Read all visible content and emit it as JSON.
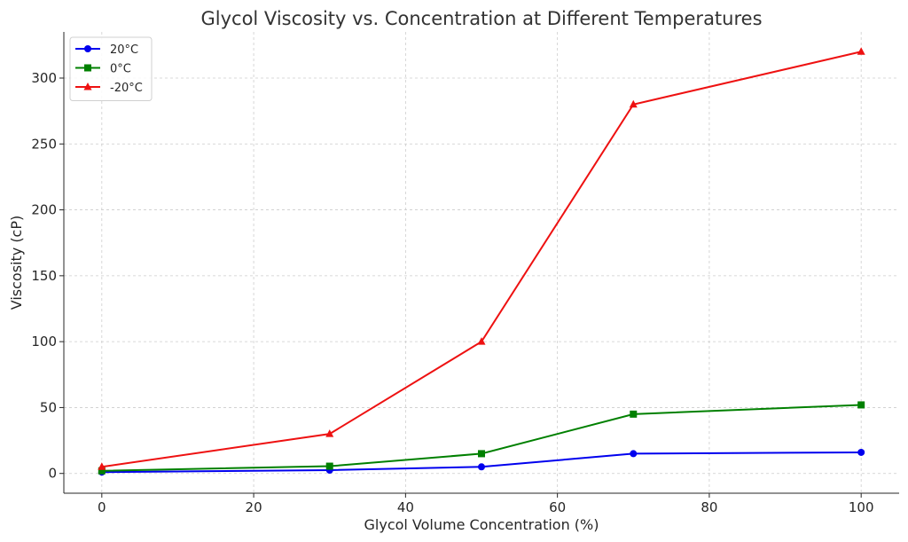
{
  "chart_data": {
    "type": "line",
    "title": "Glycol Viscosity vs. Concentration at Different Temperatures",
    "xlabel": "Glycol Volume Concentration (%)",
    "ylabel": "Viscosity (cP)",
    "x": [
      0,
      30,
      50,
      70,
      100
    ],
    "xlim": [
      -5,
      105
    ],
    "ylim": [
      -15,
      335
    ],
    "xticks": [
      0,
      20,
      40,
      60,
      80,
      100
    ],
    "yticks": [
      0,
      50,
      100,
      150,
      200,
      250,
      300
    ],
    "grid": true,
    "legend_position": "top-left",
    "series": [
      {
        "name": "20°C",
        "color": "#0000ee",
        "marker": "circle",
        "values": [
          1,
          2.5,
          5,
          15,
          16
        ]
      },
      {
        "name": "0°C",
        "color": "#008000",
        "marker": "square",
        "values": [
          2,
          5.5,
          15,
          45,
          52
        ]
      },
      {
        "name": "-20°C",
        "color": "#ee1111",
        "marker": "triangle",
        "values": [
          5,
          30,
          100,
          280,
          320
        ]
      }
    ]
  }
}
